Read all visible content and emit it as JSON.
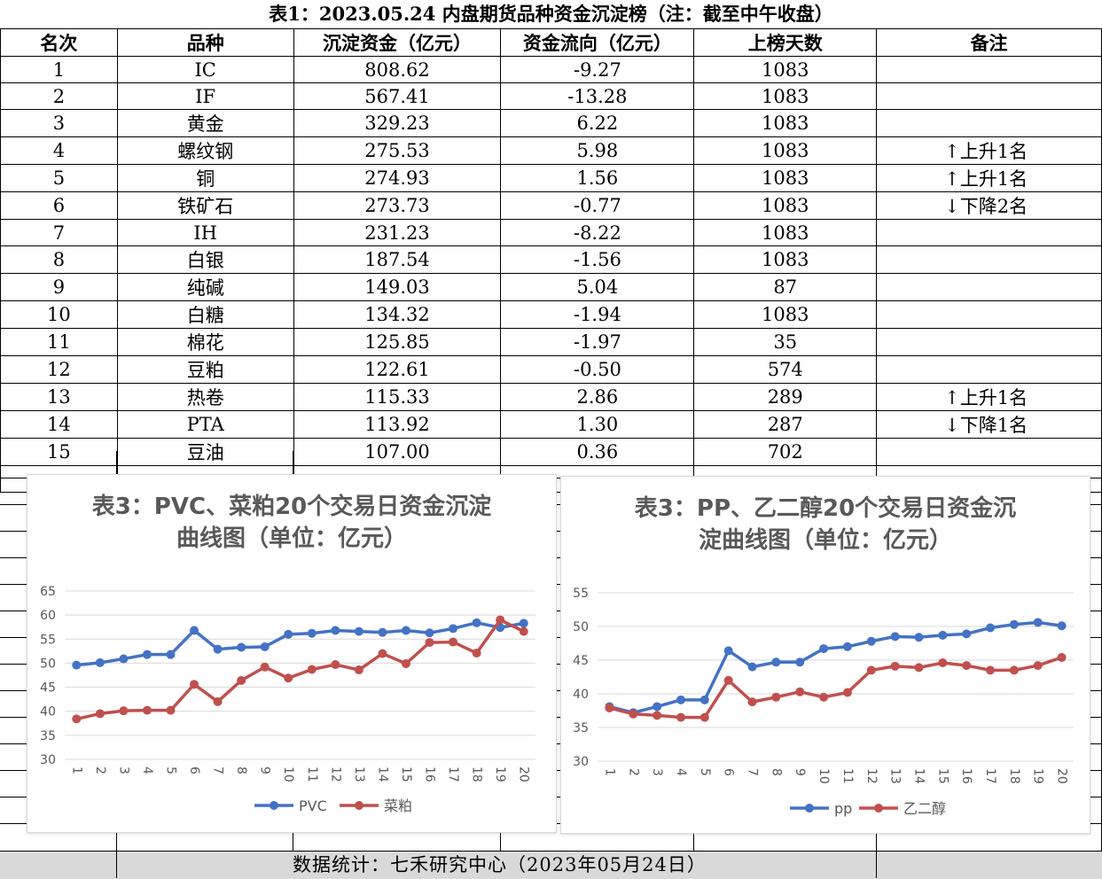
{
  "table": {
    "title": "表1：2023.05.24 内盘期货品种资金沉淀榜（注：截至中午收盘）",
    "headers": [
      "名次",
      "品种",
      "沉淀资金（亿元）",
      "资金流向（亿元）",
      "上榜天数",
      "备注"
    ],
    "rows": [
      [
        "1",
        "IC",
        "808.62",
        "-9.27",
        "1083",
        ""
      ],
      [
        "2",
        "IF",
        "567.41",
        "-13.28",
        "1083",
        ""
      ],
      [
        "3",
        "黄金",
        "329.23",
        "6.22",
        "1083",
        ""
      ],
      [
        "4",
        "螺纹钢",
        "275.53",
        "5.98",
        "1083",
        "↑上升1名"
      ],
      [
        "5",
        "铜",
        "274.93",
        "1.56",
        "1083",
        "↑上升1名"
      ],
      [
        "6",
        "铁矿石",
        "273.73",
        "-0.77",
        "1083",
        "↓下降2名"
      ],
      [
        "7",
        "IH",
        "231.23",
        "-8.22",
        "1083",
        ""
      ],
      [
        "8",
        "白银",
        "187.54",
        "-1.56",
        "1083",
        ""
      ],
      [
        "9",
        "纯碱",
        "149.03",
        "5.04",
        "87",
        ""
      ],
      [
        "10",
        "白糖",
        "134.32",
        "-1.94",
        "1083",
        ""
      ],
      [
        "11",
        "棉花",
        "125.85",
        "-1.97",
        "35",
        ""
      ],
      [
        "12",
        "豆粕",
        "122.61",
        "-0.50",
        "574",
        ""
      ],
      [
        "13",
        "热卷",
        "115.33",
        "2.86",
        "289",
        "↑上升1名"
      ],
      [
        "14",
        "PTA",
        "113.92",
        "1.30",
        "287",
        "↓下降1名"
      ],
      [
        "15",
        "豆油",
        "107.00",
        "0.36",
        "702",
        ""
      ]
    ]
  },
  "footer": "数据统计：七禾研究中心（2023年05月24日）",
  "chart_data": [
    {
      "type": "line",
      "title_line1": "表3：PVC、菜粕20个交易日资金沉淀",
      "title_line2": "曲线图（单位：亿元）",
      "x": [
        "1",
        "2",
        "3",
        "4",
        "5",
        "6",
        "7",
        "8",
        "9",
        "10",
        "11",
        "12",
        "13",
        "14",
        "15",
        "16",
        "17",
        "18",
        "19",
        "20"
      ],
      "ylim": [
        30,
        65
      ],
      "yticks": [
        "30",
        "35",
        "40",
        "45",
        "50",
        "55",
        "60",
        "65"
      ],
      "grid": true,
      "legend_position": "bottom",
      "series": [
        {
          "name": "PVC",
          "color": "#4472c4",
          "values": [
            49.6,
            50.1,
            50.9,
            51.8,
            51.8,
            56.8,
            52.9,
            53.3,
            53.4,
            56.0,
            56.2,
            56.8,
            56.6,
            56.4,
            56.8,
            56.3,
            57.2,
            58.4,
            57.4,
            58.3
          ]
        },
        {
          "name": "菜粕",
          "color": "#c0504d",
          "values": [
            38.4,
            39.5,
            40.1,
            40.2,
            40.2,
            45.6,
            42.0,
            46.4,
            49.2,
            46.9,
            48.7,
            49.7,
            48.6,
            52.0,
            49.9,
            54.3,
            54.4,
            52.1,
            59.0,
            56.6
          ]
        }
      ]
    },
    {
      "type": "line",
      "title_line1": "表3：PP、乙二醇20个交易日资金沉",
      "title_line2": "淀曲线图（单位：亿元）",
      "x": [
        "1",
        "2",
        "3",
        "4",
        "5",
        "6",
        "7",
        "8",
        "9",
        "10",
        "11",
        "12",
        "13",
        "14",
        "15",
        "16",
        "17",
        "18",
        "19",
        "20"
      ],
      "ylim": [
        30,
        55
      ],
      "yticks": [
        "30",
        "35",
        "40",
        "45",
        "50",
        "55"
      ],
      "grid": true,
      "legend_position": "bottom",
      "series": [
        {
          "name": "pp",
          "color": "#4472c4",
          "values": [
            38.1,
            37.2,
            38.1,
            39.1,
            39.1,
            46.4,
            44.0,
            44.7,
            44.7,
            46.7,
            47.0,
            47.8,
            48.5,
            48.4,
            48.7,
            48.9,
            49.8,
            50.3,
            50.6,
            50.1
          ]
        },
        {
          "name": "乙二醇",
          "color": "#c0504d",
          "values": [
            37.9,
            37.0,
            36.8,
            36.5,
            36.5,
            42.0,
            38.8,
            39.5,
            40.3,
            39.5,
            40.2,
            43.5,
            44.1,
            43.9,
            44.6,
            44.2,
            43.5,
            43.5,
            44.2,
            45.4
          ]
        }
      ]
    }
  ]
}
